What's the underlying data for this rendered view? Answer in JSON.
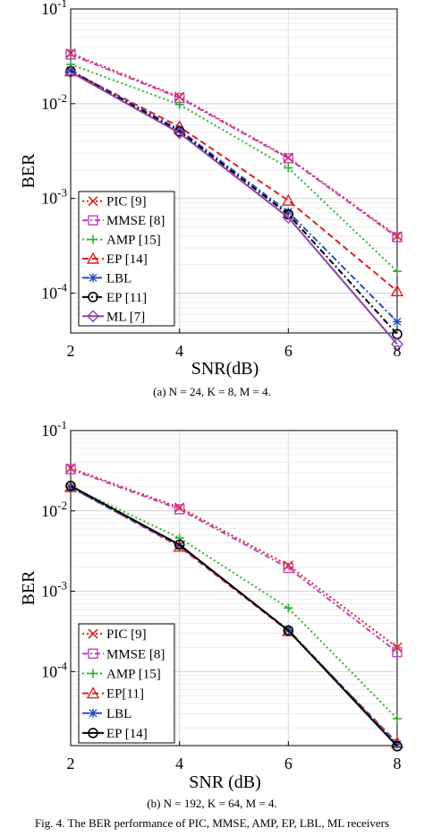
{
  "chart_data": [
    {
      "type": "line",
      "xlabel": "SNR(dB)",
      "ylabel": "BER",
      "x": [
        2,
        4,
        6,
        8
      ],
      "xticks": [
        "2",
        "4",
        "6",
        "8"
      ],
      "xlim": [
        2,
        8
      ],
      "ylim": [
        0.0001,
        0.1
      ],
      "yscale": "log",
      "yticks": [
        "10^-4",
        "10^-3",
        "10^-2",
        "10^-1"
      ],
      "grid": true,
      "legend_position": "bottom-left",
      "caption": "(a)  N = 24, K = 8, M = 4.",
      "series": [
        {
          "name": "PIC [9]",
          "color": "#e02020",
          "dash": "2,3",
          "marker": "x",
          "values": [
            0.034,
            0.0118,
            0.0027,
            0.0004
          ]
        },
        {
          "name": "MMSE [8]",
          "color": "#c040c0",
          "dash": "6,3,2,3",
          "marker": "square",
          "values": [
            0.033,
            0.0115,
            0.00265,
            0.00039
          ]
        },
        {
          "name": "AMP [15]",
          "color": "#30b030",
          "dash": "2,3",
          "marker": "plus",
          "values": [
            0.026,
            0.0098,
            0.0021,
            0.00017
          ]
        },
        {
          "name": "EP [14]",
          "color": "#e02020",
          "dash": "7,4",
          "marker": "triangle",
          "values": [
            0.022,
            0.0057,
            0.00095,
            0.000105
          ]
        },
        {
          "name": "LBL",
          "color": "#2050c0",
          "dash": "7,3,2,3",
          "marker": "star",
          "values": [
            0.0225,
            0.0053,
            0.00072,
            5e-05
          ]
        },
        {
          "name": "EP [11]",
          "color": "#000000",
          "dash": "7,3,2,3",
          "marker": "circle",
          "values": [
            0.022,
            0.0051,
            0.00068,
            3.7e-05
          ]
        },
        {
          "name": "ML [7]",
          "color": "#9040b0",
          "dash": "",
          "marker": "diamond",
          "values": [
            0.0215,
            0.0049,
            0.00063,
            2.9e-05
          ]
        }
      ]
    },
    {
      "type": "line",
      "xlabel": "SNR (dB)",
      "ylabel": "BER",
      "x": [
        2,
        4,
        6,
        8
      ],
      "xticks": [
        "2",
        "4",
        "6",
        "8"
      ],
      "xlim": [
        2,
        8
      ],
      "ylim": [
        1.2e-05,
        0.1
      ],
      "yscale": "log",
      "yticks": [
        "10^-4",
        "10^-3",
        "10^-2",
        "10^-1"
      ],
      "grid": true,
      "legend_position": "bottom-left",
      "caption": "(b) N = 192, K = 64, M = 4.",
      "series": [
        {
          "name": "PIC [9]",
          "color": "#e02020",
          "dash": "2,3",
          "marker": "x",
          "values": [
            0.034,
            0.011,
            0.0021,
            0.0002
          ]
        },
        {
          "name": "MMSE [8]",
          "color": "#c040c0",
          "dash": "6,3,2,3",
          "marker": "square",
          "values": [
            0.033,
            0.0105,
            0.00195,
            0.000175
          ]
        },
        {
          "name": "AMP [15]",
          "color": "#30b030",
          "dash": "2,3",
          "marker": "plus",
          "values": [
            0.02,
            0.0046,
            0.00062,
            2.6e-05
          ]
        },
        {
          "name": "EP[11]",
          "color": "#e02020",
          "dash": "7,4",
          "marker": "triangle",
          "values": [
            0.0198,
            0.0036,
            0.00032,
            1.3e-05
          ]
        },
        {
          "name": "LBL",
          "color": "#2050c0",
          "dash": "7,3,2,3",
          "marker": "star",
          "values": [
            0.0196,
            0.0037,
            0.00033,
            1.25e-05
          ]
        },
        {
          "name": "EP [14]",
          "color": "#000000",
          "dash": "",
          "marker": "circle",
          "values": [
            0.0205,
            0.0038,
            0.000325,
            1.18e-05
          ]
        }
      ]
    }
  ],
  "bottom_caption": "Fig. 4.  The BER performance of PIC, MMSE, AMP, EP, LBL, ML receivers"
}
